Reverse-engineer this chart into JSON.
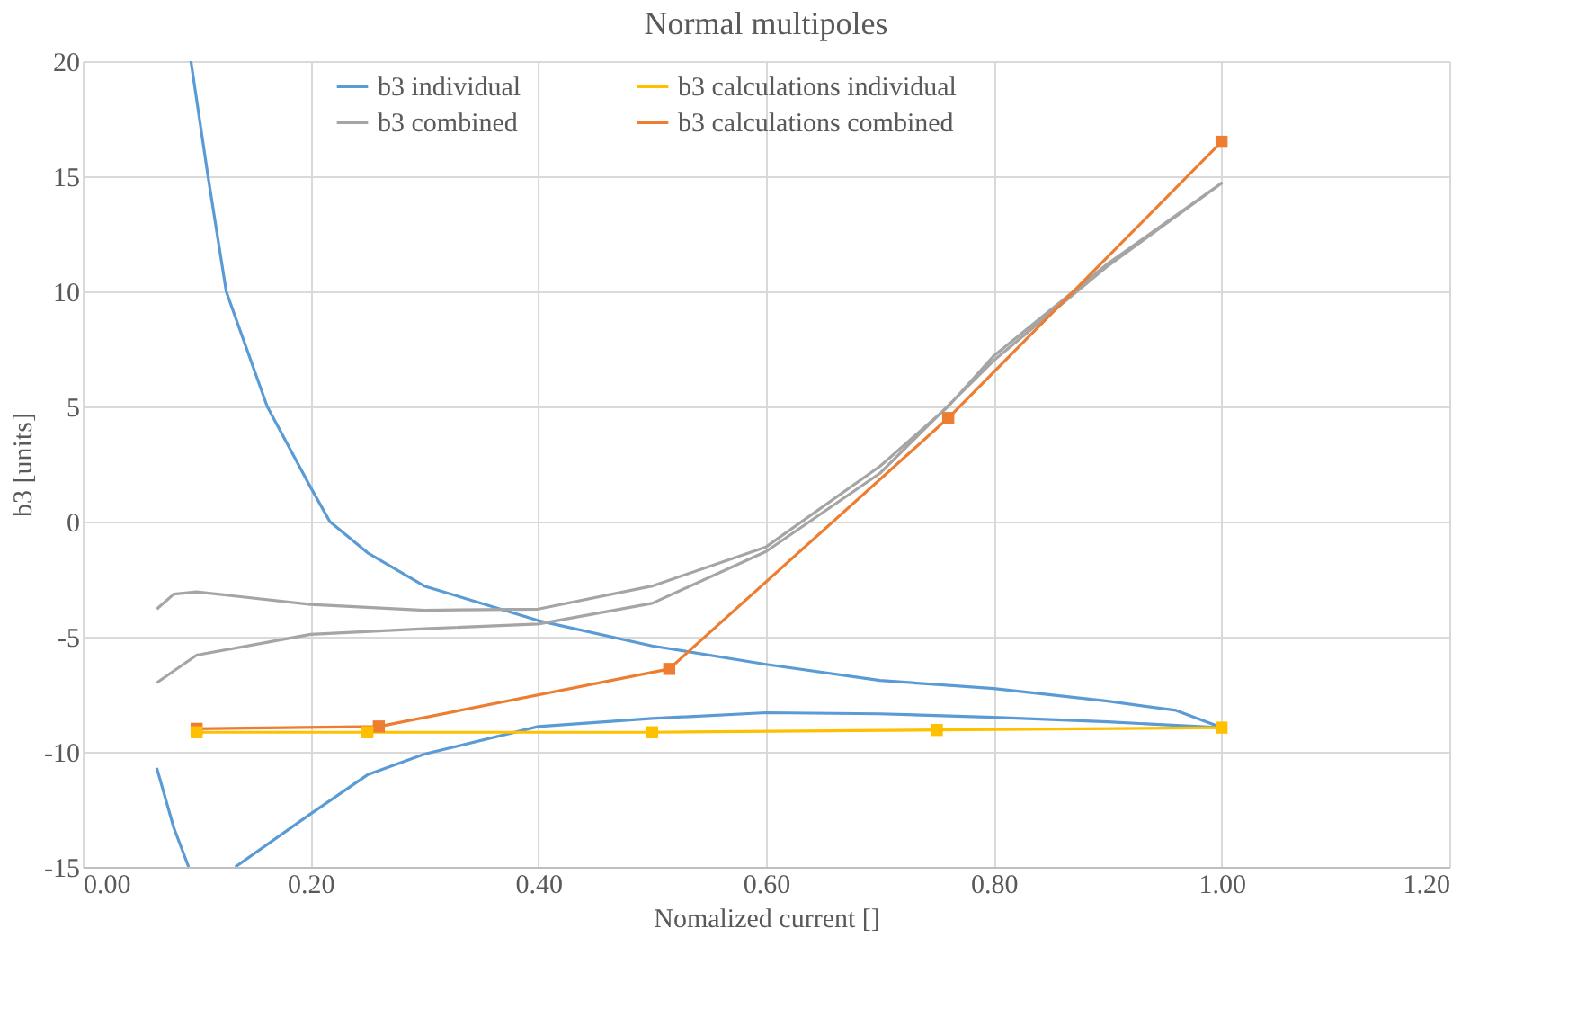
{
  "chart_data": {
    "type": "line",
    "title": "Normal multipoles",
    "xlabel": "Nomalized current []",
    "ylabel": "b3 [units]",
    "xlim": [
      0,
      1.2
    ],
    "xticks": [
      {
        "value": 0,
        "label": "0.00"
      },
      {
        "value": 0.2,
        "label": "0.20"
      },
      {
        "value": 0.4,
        "label": "0.40"
      },
      {
        "value": 0.6,
        "label": "0.60"
      },
      {
        "value": 0.8,
        "label": "0.80"
      },
      {
        "value": 1.0,
        "label": "1.00"
      },
      {
        "value": 1.2,
        "label": "1.20"
      }
    ],
    "ylim": [
      -15,
      20
    ],
    "yticks": [
      -15,
      -10,
      -5,
      0,
      5,
      10,
      15,
      20
    ],
    "grid": true,
    "legend": "top",
    "series": [
      {
        "name": "b3 individual",
        "color": "#5b9bd5",
        "marker": "none",
        "x": [
          0.065,
          0.08,
          0.093,
          0.11,
          0.134,
          0.2,
          0.25,
          0.3,
          0.4,
          0.5,
          0.6,
          0.7,
          0.8,
          0.9,
          1.0,
          0.96,
          0.9,
          0.8,
          0.7,
          0.6,
          0.5,
          0.4,
          0.3,
          0.25,
          0.217,
          0.2,
          0.162,
          0.126,
          0.11,
          0.095
        ],
        "values": [
          -10.7,
          -13.3,
          -15,
          null,
          -15,
          -12.7,
          -11.0,
          -10.1,
          -8.9,
          -8.55,
          -8.3,
          -8.35,
          -8.5,
          -8.7,
          -8.95,
          -8.2,
          -7.8,
          -7.25,
          -6.9,
          -6.2,
          -5.4,
          -4.3,
          -2.8,
          -1.35,
          0,
          1.5,
          5,
          10,
          15,
          20
        ]
      },
      {
        "name": "b3 combined",
        "color": "#a5a5a5",
        "marker": "none",
        "x": [
          0.065,
          0.08,
          0.1,
          0.2,
          0.3,
          0.4,
          0.5,
          0.6,
          0.7,
          0.76,
          0.8,
          0.9,
          1.0,
          0.9,
          0.8,
          0.7,
          0.6,
          0.5,
          0.4,
          0.3,
          0.2,
          0.1,
          0.065
        ],
        "values": [
          -3.8,
          -3.15,
          -3.05,
          -3.6,
          -3.85,
          -3.8,
          -2.8,
          -1.1,
          2.4,
          5.0,
          7.2,
          11.2,
          14.7,
          11.1,
          7.0,
          2.1,
          -1.3,
          -3.55,
          -4.45,
          -4.65,
          -4.9,
          -5.8,
          -7.0
        ]
      },
      {
        "name": "b3 calculations individual",
        "color": "#ffc000",
        "marker": "square",
        "x": [
          0.1,
          0.25,
          0.5,
          0.75,
          1.0
        ],
        "values": [
          -9.15,
          -9.15,
          -9.15,
          -9.05,
          -8.95
        ]
      },
      {
        "name": "b3 calculations combined",
        "color": "#ed7d31",
        "marker": "square",
        "x": [
          0.1,
          0.26,
          0.515,
          0.76,
          1.0
        ],
        "values": [
          -9.0,
          -8.9,
          -6.4,
          4.5,
          16.5
        ]
      }
    ]
  }
}
